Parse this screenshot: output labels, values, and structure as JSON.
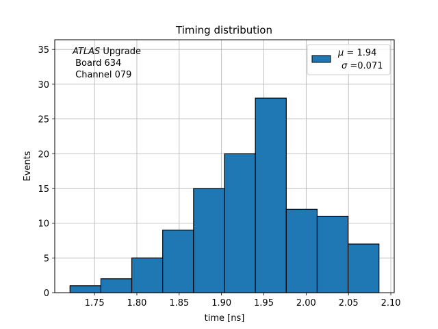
{
  "chart_data": {
    "type": "bar",
    "title": "Timing distribution",
    "xlabel": "time [ns]",
    "ylabel": "Events",
    "bin_edges": [
      1.721,
      1.7575,
      1.794,
      1.8305,
      1.867,
      1.9035,
      1.94,
      1.9765,
      2.013,
      2.0495,
      2.086
    ],
    "values": [
      1,
      2,
      5,
      9,
      15,
      20,
      28,
      12,
      11,
      7
    ],
    "xlim": [
      1.703,
      2.104
    ],
    "ylim": [
      0,
      36.4
    ],
    "x_ticks": [
      "1.75",
      "1.80",
      "1.85",
      "1.90",
      "1.95",
      "2.00",
      "2.05",
      "2.10"
    ],
    "x_tick_values": [
      1.75,
      1.8,
      1.85,
      1.9,
      1.95,
      2.0,
      2.05,
      2.1
    ],
    "y_ticks": [
      "0",
      "5",
      "10",
      "15",
      "20",
      "25",
      "30",
      "35"
    ],
    "y_tick_values": [
      0,
      5,
      10,
      15,
      20,
      25,
      30,
      35
    ],
    "grid": true,
    "bar_color": "#1f77b4",
    "edge_color": "#000000",
    "annotation": {
      "experiment": "ATLAS",
      "experiment_suffix": " Upgrade",
      "board": " Board 634",
      "channel": " Channel 079"
    },
    "legend": {
      "position": "top-right",
      "mu_symbol": "μ",
      "mu_text": " = 1.94",
      "sigma_symbol": "σ",
      "sigma_text": " =0.071"
    }
  }
}
